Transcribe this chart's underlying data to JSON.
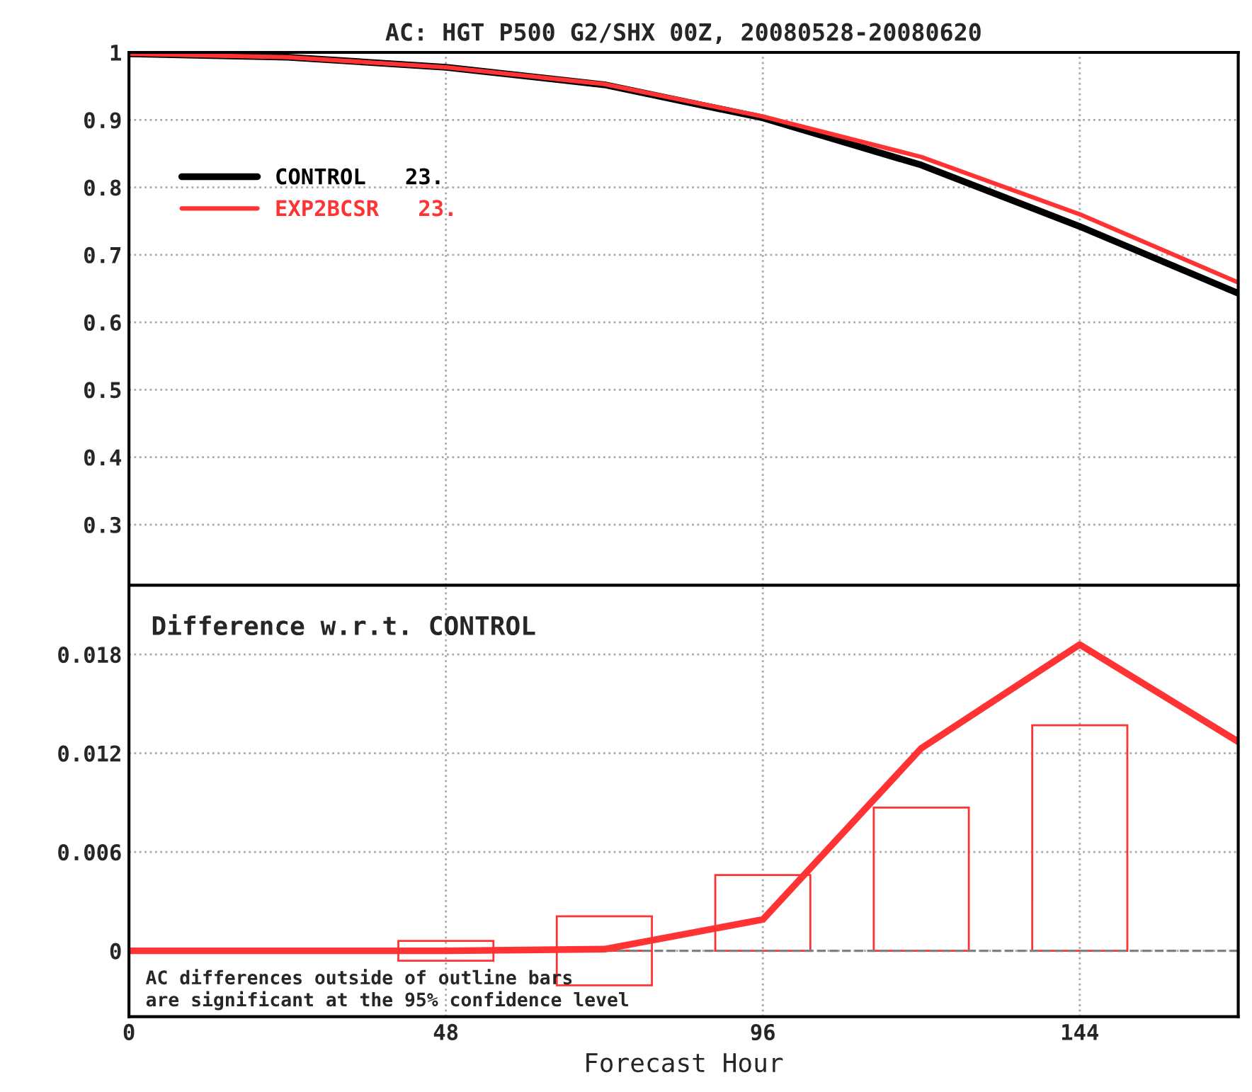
{
  "chart_data": [
    {
      "type": "line",
      "title": "AC: HGT P500 G2/SHX 00Z, 20080528-20080620",
      "x": [
        0,
        24,
        48,
        72,
        96,
        120,
        144,
        168
      ],
      "series": [
        {
          "name": "CONTROL   23.",
          "color": "#000000",
          "values": [
            0.998,
            0.993,
            0.978,
            0.952,
            0.903,
            0.833,
            0.742,
            0.643
          ]
        },
        {
          "name": "EXP2BCSR   23.",
          "color": "#ff3333",
          "values": [
            0.998,
            0.993,
            0.978,
            0.953,
            0.905,
            0.845,
            0.76,
            0.659
          ]
        }
      ],
      "xlim": [
        0,
        168
      ],
      "xticks": [
        0,
        48,
        96,
        144
      ],
      "ylim": [
        0.21,
        1.0
      ],
      "yticks": [
        0.3,
        0.4,
        0.5,
        0.6,
        0.7,
        0.8,
        0.9,
        {
          "value": 1.0,
          "label": "1"
        }
      ],
      "grid": true,
      "legend": "top left",
      "tick_labels": "y"
    },
    {
      "type": "line",
      "xlabel": "Forecast Hour",
      "x": [
        0,
        24,
        48,
        72,
        96,
        120,
        144,
        168
      ],
      "series": [
        {
          "type": "line",
          "color": "#ff3333",
          "values": [
            0,
            0,
            0,
            0.0001,
            0.0019,
            0.0123,
            0.0186,
            0.0127
          ]
        },
        {
          "type": "bar",
          "color": "#ff3333",
          "x": [
            48,
            72,
            96,
            120,
            144
          ],
          "values": [
            0.0006,
            0.0021,
            0.0046,
            0.0087,
            0.0137
          ]
        },
        {
          "type": "bar",
          "color": "#ff3333",
          "x": [
            48,
            72
          ],
          "values": [
            -0.0006,
            -0.0021
          ]
        }
      ],
      "xlim": [
        0,
        168
      ],
      "xticks": [
        0,
        48,
        96,
        144
      ],
      "ylim": [
        -0.004,
        0.0222
      ],
      "yticks": [
        {
          "value": 0,
          "label": "0"
        },
        0.006,
        0.012,
        0.018
      ],
      "ref_lines": [
        {
          "axis": "y",
          "value": 0,
          "color": "#808080",
          "line_style": "dashed"
        }
      ],
      "annotations": [
        "Difference w.r.t. CONTROL",
        "AC differences outside of outline bars\nare significant at the 95% confidence level"
      ],
      "grid": true
    }
  ]
}
